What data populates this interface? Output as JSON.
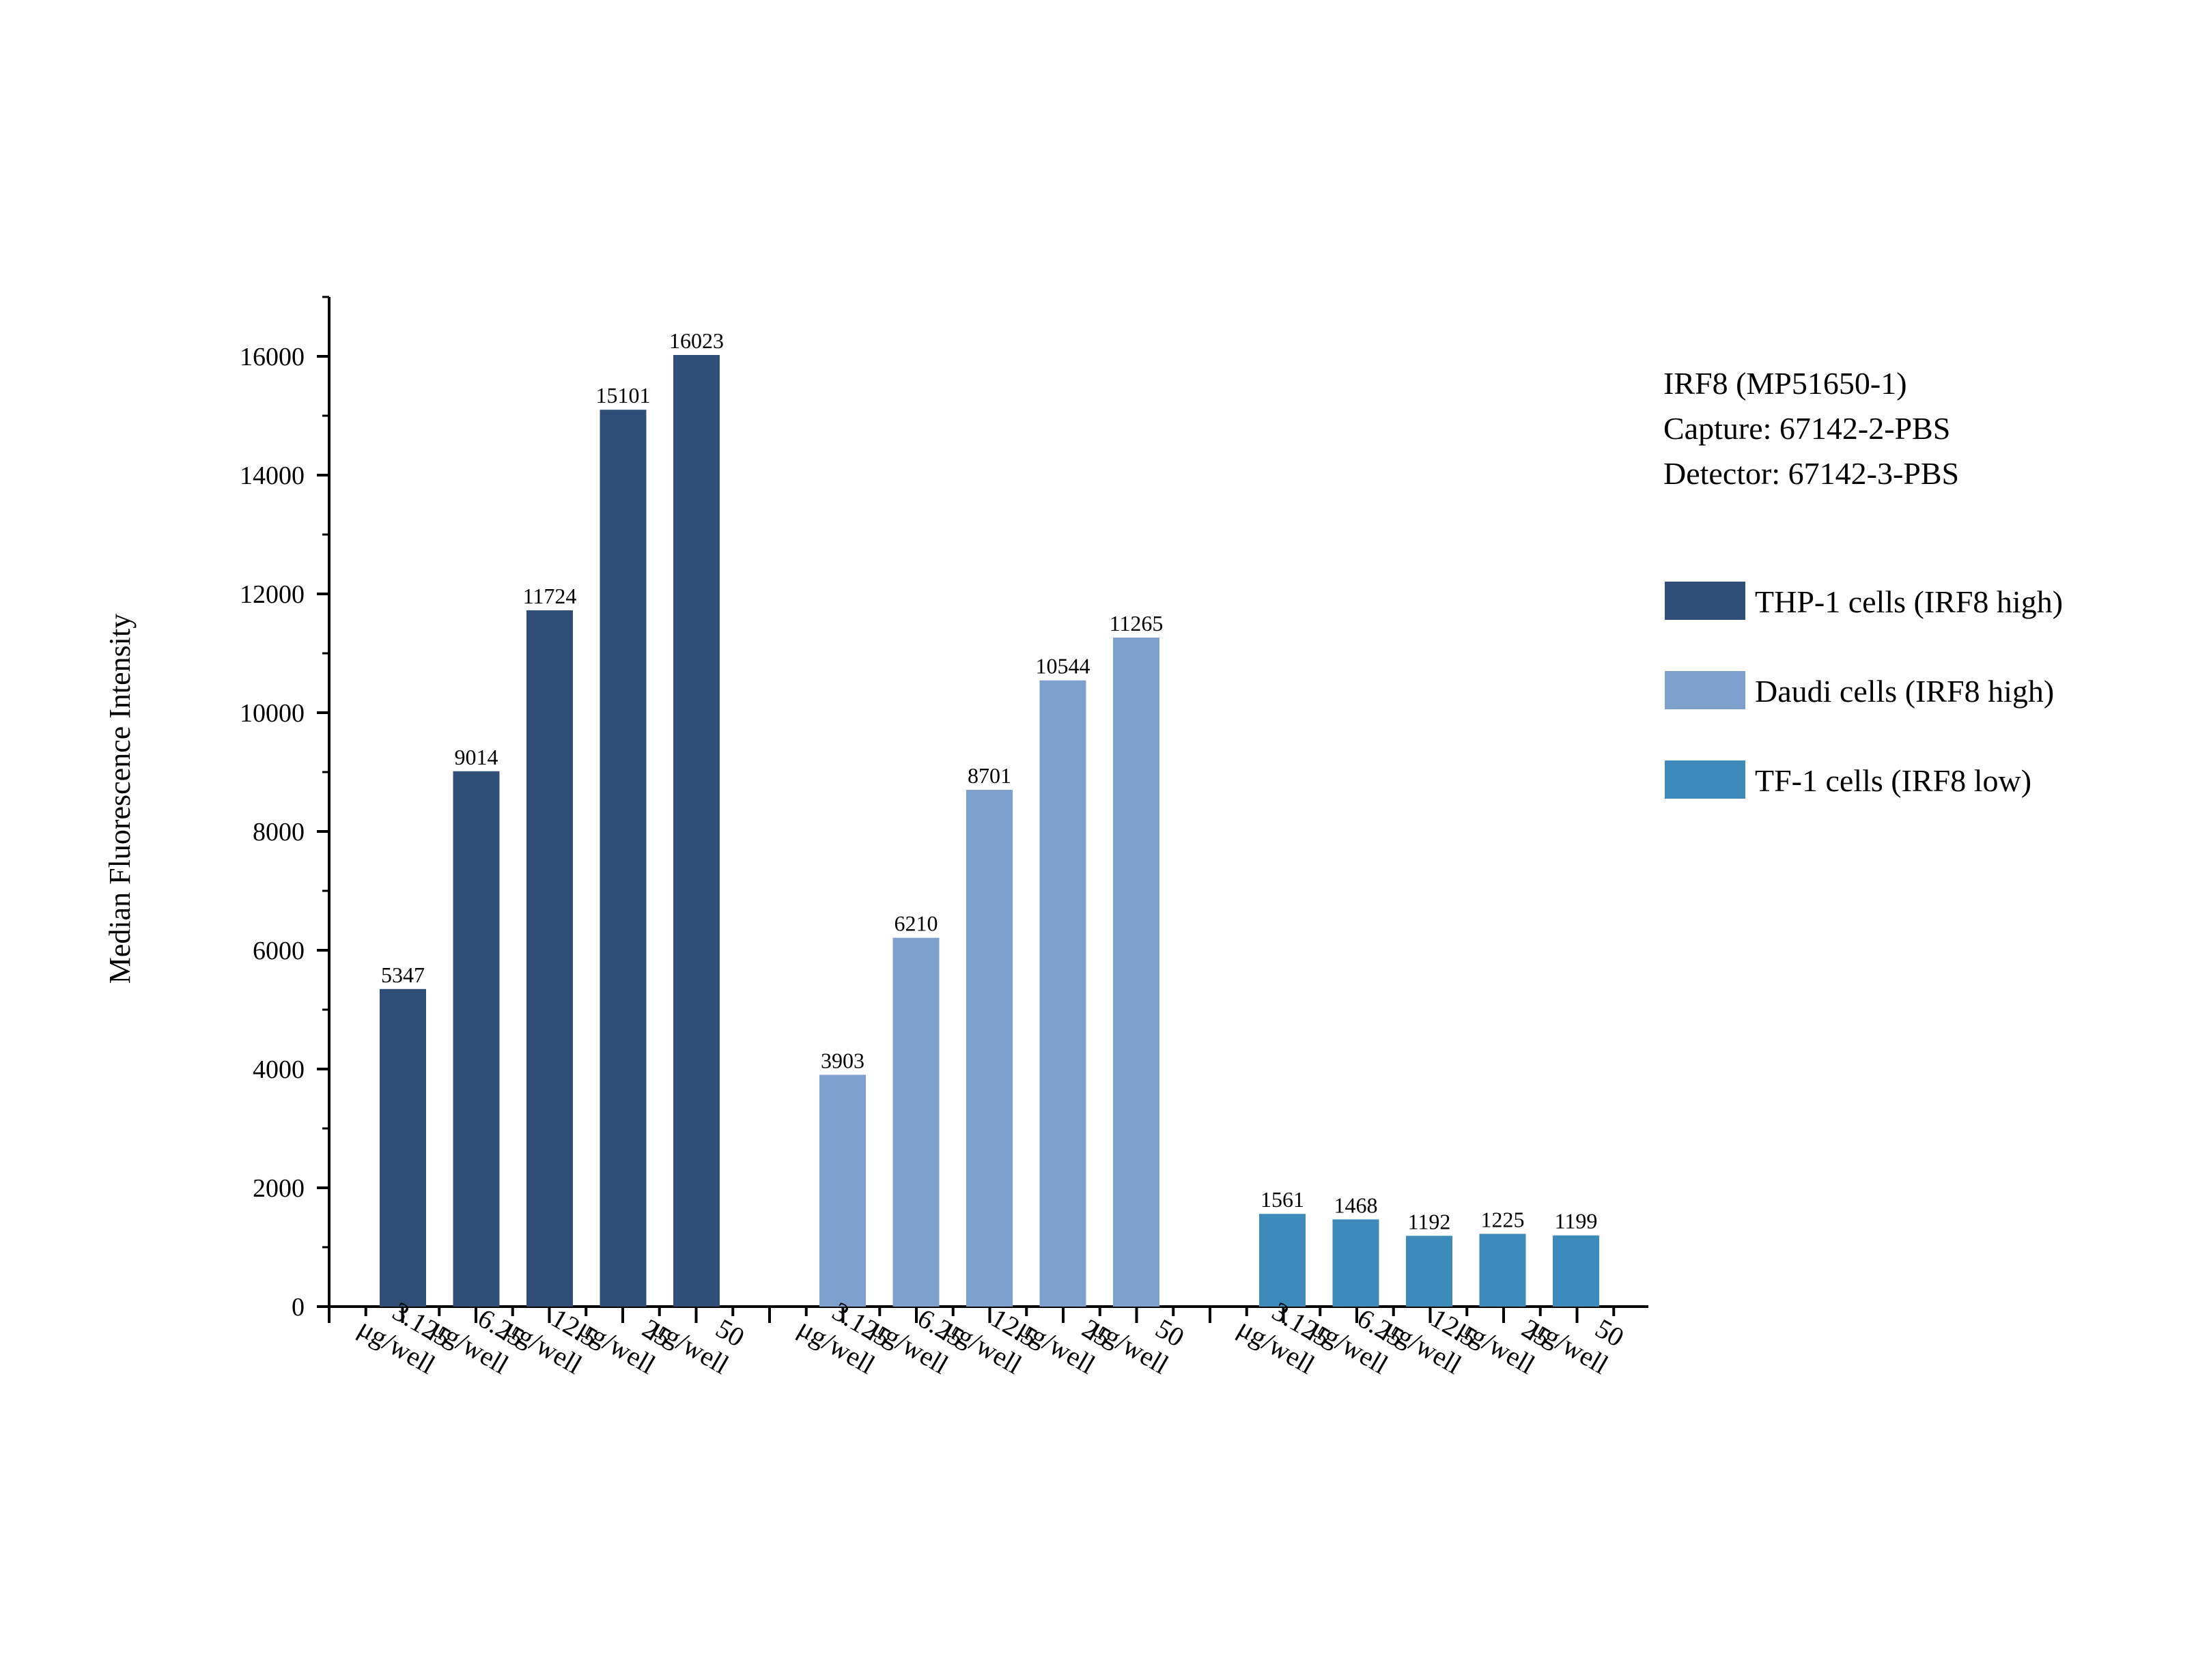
{
  "chart_data": {
    "type": "bar",
    "ylabel": "Median Fluorescence Intensity",
    "xlabel": "",
    "ylim": [
      0,
      17000
    ],
    "yticks": [
      0,
      2000,
      4000,
      6000,
      8000,
      10000,
      12000,
      14000,
      16000
    ],
    "grid": false,
    "legend_position": "right",
    "categories": [
      "3.125 μg/well",
      "6.25 μg/well",
      "12.5 μg/well",
      "25 μg/well",
      "50 μg/well"
    ],
    "series": [
      {
        "name": "THP-1 cells (IRF8 high)",
        "color": "#2f4f79",
        "values": [
          5347,
          9014,
          11724,
          15101,
          16023
        ]
      },
      {
        "name": "Daudi cells (IRF8 high)",
        "color": "#7ea0cc",
        "values": [
          3903,
          6210,
          8701,
          10544,
          11265
        ]
      },
      {
        "name": "TF-1 cells (IRF8 low)",
        "color": "#3c8bba",
        "values": [
          1561,
          1468,
          1192,
          1225,
          1199
        ]
      }
    ],
    "info_text": [
      "IRF8 (MP51650-1)",
      "Capture: 67142-2-PBS",
      "Detector: 67142-3-PBS"
    ]
  }
}
